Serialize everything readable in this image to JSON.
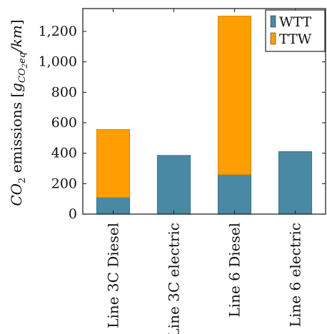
{
  "chart_data": {
    "type": "bar",
    "stacked": true,
    "categories": [
      "Line 3C Diesel",
      "Line 3C electric",
      "Line 6 Diesel",
      "Line 6 electric"
    ],
    "series": [
      {
        "name": "WTT",
        "values": [
          110,
          385,
          260,
          410
        ],
        "color": "#4a89a3"
      },
      {
        "name": "TTW",
        "values": [
          445,
          0,
          1040,
          0
        ],
        "color": "#ff9e00"
      }
    ],
    "ylabel_parts": {
      "main": "CO",
      "main_sub": "2",
      "text": " emissions ",
      "open": "[",
      "g": "g",
      "g_sub": "CO",
      "g_sub2": "2",
      "g_sub3": "eq",
      "unit": "/km",
      "close": "]"
    },
    "ylim": [
      0,
      1350
    ],
    "yticks": [
      0,
      200,
      400,
      600,
      800,
      1000,
      1200
    ],
    "ytick_labels": [
      "0",
      "200",
      "400",
      "600",
      "800",
      "1,000",
      "1,200"
    ],
    "legend_position": "top-right",
    "grid": false
  }
}
